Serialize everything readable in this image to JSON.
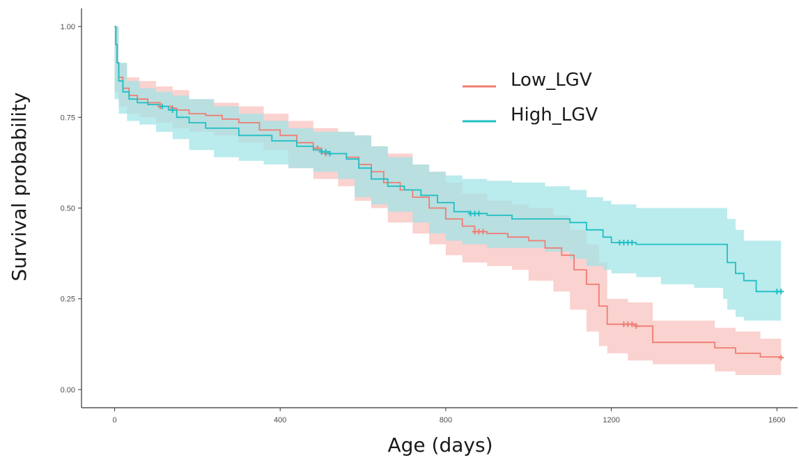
{
  "chart_data": {
    "type": "line",
    "subtype": "kaplan-meier survival curve with confidence bands",
    "xlabel": "Age (days)",
    "ylabel": "Survival probability",
    "xlim": [
      -80,
      1650
    ],
    "ylim": [
      -0.05,
      1.05
    ],
    "x_ticks": [
      0,
      400,
      800,
      1200,
      1600
    ],
    "x_tick_labels": [
      "0",
      "400",
      "800",
      "1200",
      "1600"
    ],
    "y_ticks": [
      0,
      0.25,
      0.5,
      0.75,
      1
    ],
    "y_tick_labels": [
      "0.00",
      "0.25",
      "0.50",
      "0.75",
      "1.00"
    ],
    "grid": false,
    "legend_position": "top-right",
    "series": [
      {
        "name": "Low_LGV",
        "color": "#f07c72",
        "band_color": "#f8c1bd",
        "points": [
          [
            0,
            1.0
          ],
          [
            3,
            0.95
          ],
          [
            6,
            0.9
          ],
          [
            10,
            0.86
          ],
          [
            20,
            0.83
          ],
          [
            35,
            0.81
          ],
          [
            55,
            0.8
          ],
          [
            80,
            0.79
          ],
          [
            110,
            0.78
          ],
          [
            140,
            0.775
          ],
          [
            150,
            0.77
          ],
          [
            180,
            0.76
          ],
          [
            220,
            0.755
          ],
          [
            260,
            0.745
          ],
          [
            300,
            0.735
          ],
          [
            350,
            0.715
          ],
          [
            400,
            0.7
          ],
          [
            440,
            0.68
          ],
          [
            480,
            0.665
          ],
          [
            500,
            0.655
          ],
          [
            510,
            0.65
          ],
          [
            560,
            0.64
          ],
          [
            590,
            0.62
          ],
          [
            620,
            0.6
          ],
          [
            650,
            0.57
          ],
          [
            690,
            0.55
          ],
          [
            720,
            0.53
          ],
          [
            760,
            0.5
          ],
          [
            800,
            0.47
          ],
          [
            840,
            0.45
          ],
          [
            870,
            0.435
          ],
          [
            900,
            0.43
          ],
          [
            950,
            0.42
          ],
          [
            1000,
            0.41
          ],
          [
            1040,
            0.39
          ],
          [
            1080,
            0.37
          ],
          [
            1110,
            0.33
          ],
          [
            1140,
            0.29
          ],
          [
            1170,
            0.23
          ],
          [
            1190,
            0.18
          ],
          [
            1260,
            0.175
          ],
          [
            1300,
            0.13
          ],
          [
            1450,
            0.115
          ],
          [
            1500,
            0.1
          ],
          [
            1560,
            0.09
          ],
          [
            1610,
            0.088
          ]
        ],
        "band_upper": [
          [
            0,
            1.0
          ],
          [
            10,
            0.9
          ],
          [
            30,
            0.86
          ],
          [
            60,
            0.85
          ],
          [
            100,
            0.835
          ],
          [
            140,
            0.825
          ],
          [
            180,
            0.8
          ],
          [
            240,
            0.79
          ],
          [
            300,
            0.78
          ],
          [
            360,
            0.76
          ],
          [
            420,
            0.74
          ],
          [
            480,
            0.72
          ],
          [
            540,
            0.71
          ],
          [
            580,
            0.7
          ],
          [
            620,
            0.67
          ],
          [
            660,
            0.65
          ],
          [
            720,
            0.62
          ],
          [
            760,
            0.6
          ],
          [
            800,
            0.57
          ],
          [
            840,
            0.54
          ],
          [
            900,
            0.52
          ],
          [
            960,
            0.51
          ],
          [
            1000,
            0.5
          ],
          [
            1060,
            0.48
          ],
          [
            1100,
            0.44
          ],
          [
            1140,
            0.4
          ],
          [
            1170,
            0.35
          ],
          [
            1190,
            0.25
          ],
          [
            1240,
            0.24
          ],
          [
            1300,
            0.19
          ],
          [
            1450,
            0.17
          ],
          [
            1500,
            0.16
          ],
          [
            1560,
            0.14
          ],
          [
            1610,
            0.14
          ]
        ],
        "band_lower": [
          [
            0,
            1.0
          ],
          [
            10,
            0.82
          ],
          [
            30,
            0.78
          ],
          [
            60,
            0.76
          ],
          [
            100,
            0.75
          ],
          [
            140,
            0.735
          ],
          [
            180,
            0.72
          ],
          [
            240,
            0.71
          ],
          [
            300,
            0.7
          ],
          [
            360,
            0.68
          ],
          [
            420,
            0.66
          ],
          [
            480,
            0.61
          ],
          [
            540,
            0.58
          ],
          [
            580,
            0.56
          ],
          [
            620,
            0.52
          ],
          [
            660,
            0.5
          ],
          [
            720,
            0.46
          ],
          [
            760,
            0.43
          ],
          [
            800,
            0.4
          ],
          [
            840,
            0.37
          ],
          [
            900,
            0.35
          ],
          [
            960,
            0.34
          ],
          [
            1000,
            0.33
          ],
          [
            1060,
            0.3
          ],
          [
            1100,
            0.27
          ],
          [
            1140,
            0.22
          ],
          [
            1170,
            0.16
          ],
          [
            1190,
            0.12
          ],
          [
            1240,
            0.1
          ],
          [
            1300,
            0.08
          ],
          [
            1450,
            0.07
          ],
          [
            1500,
            0.05
          ],
          [
            1560,
            0.04
          ],
          [
            1610,
            0.04
          ]
        ],
        "censor_x": [
          110,
          140,
          490,
          500,
          510,
          870,
          880,
          890,
          1230,
          1240,
          1250,
          1260,
          1610
        ]
      },
      {
        "name": "High_LGV",
        "color": "#1fbfc4",
        "band_color": "#9fe3e6",
        "points": [
          [
            0,
            1.0
          ],
          [
            3,
            0.95
          ],
          [
            6,
            0.9
          ],
          [
            10,
            0.85
          ],
          [
            20,
            0.82
          ],
          [
            35,
            0.8
          ],
          [
            55,
            0.79
          ],
          [
            80,
            0.785
          ],
          [
            110,
            0.78
          ],
          [
            130,
            0.77
          ],
          [
            150,
            0.75
          ],
          [
            180,
            0.735
          ],
          [
            220,
            0.72
          ],
          [
            300,
            0.7
          ],
          [
            380,
            0.685
          ],
          [
            440,
            0.67
          ],
          [
            480,
            0.66
          ],
          [
            500,
            0.655
          ],
          [
            520,
            0.65
          ],
          [
            560,
            0.635
          ],
          [
            590,
            0.61
          ],
          [
            620,
            0.58
          ],
          [
            660,
            0.56
          ],
          [
            700,
            0.55
          ],
          [
            740,
            0.535
          ],
          [
            780,
            0.515
          ],
          [
            820,
            0.49
          ],
          [
            860,
            0.485
          ],
          [
            900,
            0.48
          ],
          [
            960,
            0.47
          ],
          [
            1040,
            0.47
          ],
          [
            1100,
            0.46
          ],
          [
            1140,
            0.44
          ],
          [
            1180,
            0.42
          ],
          [
            1200,
            0.405
          ],
          [
            1260,
            0.4
          ],
          [
            1320,
            0.4
          ],
          [
            1400,
            0.4
          ],
          [
            1470,
            0.4
          ],
          [
            1480,
            0.35
          ],
          [
            1500,
            0.32
          ],
          [
            1520,
            0.3
          ],
          [
            1550,
            0.27
          ],
          [
            1610,
            0.27
          ]
        ],
        "band_upper": [
          [
            0,
            1.0
          ],
          [
            10,
            0.9
          ],
          [
            30,
            0.85
          ],
          [
            60,
            0.83
          ],
          [
            100,
            0.82
          ],
          [
            140,
            0.81
          ],
          [
            180,
            0.8
          ],
          [
            240,
            0.78
          ],
          [
            300,
            0.76
          ],
          [
            360,
            0.74
          ],
          [
            420,
            0.72
          ],
          [
            480,
            0.71
          ],
          [
            540,
            0.71
          ],
          [
            580,
            0.7
          ],
          [
            620,
            0.67
          ],
          [
            660,
            0.64
          ],
          [
            720,
            0.62
          ],
          [
            760,
            0.6
          ],
          [
            800,
            0.59
          ],
          [
            840,
            0.58
          ],
          [
            900,
            0.575
          ],
          [
            960,
            0.57
          ],
          [
            1040,
            0.56
          ],
          [
            1100,
            0.55
          ],
          [
            1140,
            0.53
          ],
          [
            1180,
            0.52
          ],
          [
            1200,
            0.51
          ],
          [
            1260,
            0.5
          ],
          [
            1320,
            0.5
          ],
          [
            1400,
            0.5
          ],
          [
            1470,
            0.5
          ],
          [
            1480,
            0.47
          ],
          [
            1500,
            0.44
          ],
          [
            1520,
            0.41
          ],
          [
            1560,
            0.41
          ],
          [
            1610,
            0.41
          ]
        ],
        "band_lower": [
          [
            0,
            1.0
          ],
          [
            10,
            0.8
          ],
          [
            30,
            0.76
          ],
          [
            60,
            0.74
          ],
          [
            100,
            0.73
          ],
          [
            140,
            0.71
          ],
          [
            180,
            0.69
          ],
          [
            240,
            0.66
          ],
          [
            300,
            0.64
          ],
          [
            360,
            0.63
          ],
          [
            420,
            0.62
          ],
          [
            480,
            0.61
          ],
          [
            540,
            0.6
          ],
          [
            580,
            0.58
          ],
          [
            620,
            0.53
          ],
          [
            660,
            0.51
          ],
          [
            720,
            0.49
          ],
          [
            760,
            0.46
          ],
          [
            800,
            0.43
          ],
          [
            840,
            0.41
          ],
          [
            900,
            0.4
          ],
          [
            960,
            0.39
          ],
          [
            1040,
            0.39
          ],
          [
            1100,
            0.38
          ],
          [
            1140,
            0.36
          ],
          [
            1180,
            0.34
          ],
          [
            1200,
            0.33
          ],
          [
            1260,
            0.32
          ],
          [
            1320,
            0.31
          ],
          [
            1400,
            0.29
          ],
          [
            1470,
            0.28
          ],
          [
            1480,
            0.25
          ],
          [
            1500,
            0.22
          ],
          [
            1520,
            0.2
          ],
          [
            1560,
            0.19
          ],
          [
            1610,
            0.19
          ]
        ],
        "censor_x": [
          115,
          140,
          500,
          510,
          520,
          860,
          870,
          880,
          1220,
          1230,
          1240,
          1250,
          1600,
          1610
        ]
      }
    ]
  }
}
